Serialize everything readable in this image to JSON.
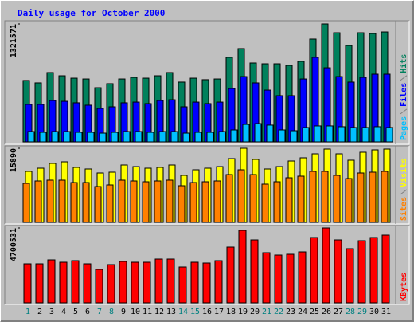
{
  "chart_data": [
    {
      "type": "bar",
      "title": "Daily usage for October 2000",
      "ylim": [
        0,
        1321571
      ],
      "yticks": [
        1321571
      ],
      "series": [
        {
          "name": "Hits",
          "color": "#00805c",
          "values": [
            688000,
            661000,
            777000,
            741000,
            714000,
            705000,
            607000,
            652000,
            705000,
            723000,
            714000,
            741000,
            777000,
            670000,
            714000,
            697000,
            705000,
            947000,
            1045000,
            884000,
            875000,
            875000,
            857000,
            902000,
            1152000,
            1321571,
            1223000,
            1080000,
            1223000,
            1214000,
            1232000
          ]
        },
        {
          "name": "Files",
          "color": "#0000ff",
          "values": [
            420000,
            420000,
            464000,
            455000,
            438000,
            411000,
            375000,
            393000,
            438000,
            446000,
            429000,
            464000,
            473000,
            393000,
            446000,
            429000,
            446000,
            598000,
            732000,
            661000,
            580000,
            518000,
            518000,
            705000,
            947000,
            830000,
            732000,
            670000,
            723000,
            759000,
            759000
          ]
        },
        {
          "name": "Pages",
          "color": "#00c0ff",
          "values": [
            116000,
            107000,
            116000,
            116000,
            107000,
            107000,
            98000,
            107000,
            116000,
            116000,
            107000,
            116000,
            116000,
            98000,
            107000,
            107000,
            116000,
            134000,
            196000,
            205000,
            188000,
            134000,
            125000,
            161000,
            179000,
            179000,
            170000,
            161000,
            161000,
            170000,
            161000
          ]
        }
      ]
    },
    {
      "type": "bar",
      "ylim": [
        0,
        15890
      ],
      "yticks": [
        15890
      ],
      "series": [
        {
          "name": "Visits",
          "color": "#ffff00",
          "values": [
            10935,
            11618,
            12644,
            12985,
            11789,
            11448,
            10593,
            10764,
            12302,
            11960,
            11618,
            11789,
            12302,
            10081,
            11277,
            11618,
            11960,
            13669,
            15890,
            13498,
            11448,
            11960,
            13156,
            13840,
            14694,
            15720,
            14694,
            13327,
            15036,
            15548,
            15720
          ]
        },
        {
          "name": "Sites",
          "color": "#ff8000",
          "values": [
            8372,
            8885,
            9056,
            9056,
            8543,
            8543,
            7689,
            8030,
            9056,
            8885,
            8714,
            8885,
            9056,
            7860,
            8543,
            8714,
            8885,
            10252,
            11277,
            10252,
            8201,
            8714,
            9568,
            9910,
            10935,
            10935,
            10081,
            9397,
            10593,
            10764,
            10935
          ]
        }
      ]
    },
    {
      "type": "bar",
      "ylim": [
        0,
        4700531
      ],
      "yticks": [
        4700531
      ],
      "categories": [
        "1",
        "2",
        "3",
        "4",
        "5",
        "6",
        "7",
        "8",
        "9",
        "10",
        "11",
        "12",
        "13",
        "14",
        "15",
        "16",
        "17",
        "18",
        "19",
        "20",
        "21",
        "22",
        "23",
        "24",
        "25",
        "26",
        "27",
        "28",
        "29",
        "30",
        "31"
      ],
      "category_colors": [
        "#008080",
        "#000000",
        "#000000",
        "#000000",
        "#000000",
        "#000000",
        "#008080",
        "#008080",
        "#000000",
        "#000000",
        "#000000",
        "#000000",
        "#000000",
        "#008080",
        "#008080",
        "#000000",
        "#000000",
        "#000000",
        "#000000",
        "#000000",
        "#008080",
        "#008080",
        "#000000",
        "#000000",
        "#000000",
        "#000000",
        "#000000",
        "#008080",
        "#008080",
        "#000000",
        "#000000"
      ],
      "series": [
        {
          "name": "KBytes",
          "color": "#ff0000",
          "values": [
            2450000,
            2450000,
            2700000,
            2550000,
            2650000,
            2450000,
            2100000,
            2400000,
            2600000,
            2550000,
            2550000,
            2750000,
            2750000,
            2250000,
            2550000,
            2500000,
            2650000,
            3500000,
            4550000,
            3950000,
            3150000,
            3000000,
            3050000,
            3200000,
            4100000,
            4700531,
            3950000,
            3400000,
            3900000,
            4100000,
            4250000
          ]
        }
      ]
    }
  ]
}
